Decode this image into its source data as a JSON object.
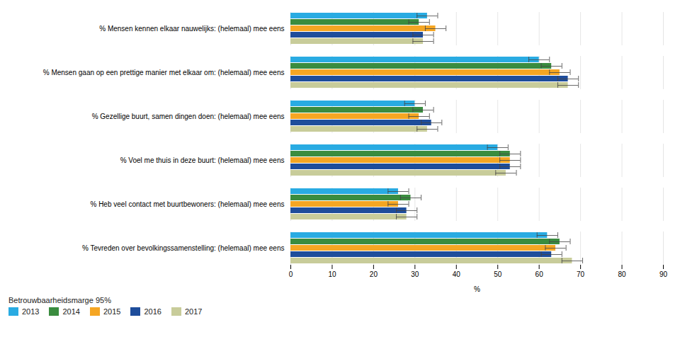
{
  "chart_data": {
    "type": "bar",
    "orientation": "horizontal",
    "categories": [
      "% Mensen kennen elkaar nauwelijks: (helemaal) mee eens",
      "% Mensen gaan op een prettige manier met elkaar om: (helemaal) mee eens",
      "% Gezellige buurt, samen dingen doen: (helemaal) mee eens",
      "% Voel me thuis in deze buurt: (helemaal) mee eens",
      "% Heb veel contact met buurtbewoners: (helemaal) mee eens",
      "% Tevreden over bevolkingssamenstelling: (helemaal) mee eens"
    ],
    "series": [
      {
        "name": "2013",
        "color": "#29ABE2",
        "values": [
          33,
          60,
          30,
          50,
          26,
          62
        ],
        "errors": [
          2.5,
          2.5,
          2.5,
          2.5,
          2.5,
          2.5
        ]
      },
      {
        "name": "2014",
        "color": "#3A8C3F",
        "values": [
          31,
          63,
          32,
          53,
          29,
          65
        ],
        "errors": [
          2.5,
          2.5,
          2.5,
          2.5,
          2.5,
          2.5
        ]
      },
      {
        "name": "2015",
        "color": "#F5A623",
        "values": [
          35,
          65,
          31,
          53,
          26,
          64
        ],
        "errors": [
          2.5,
          2.5,
          2.5,
          2.5,
          2.5,
          2.5
        ]
      },
      {
        "name": "2016",
        "color": "#1E4D9B",
        "values": [
          32,
          67,
          34,
          53,
          28,
          63
        ],
        "errors": [
          2.5,
          2.5,
          2.5,
          2.5,
          2.5,
          2.5
        ]
      },
      {
        "name": "2017",
        "color": "#C8CC9A",
        "values": [
          32,
          67,
          33,
          52,
          28,
          68
        ],
        "errors": [
          2.5,
          2.5,
          2.5,
          2.5,
          2.5,
          2.5
        ]
      }
    ],
    "xlabel": "%",
    "xlim": [
      0,
      90
    ],
    "xticks": [
      0,
      10,
      20,
      30,
      40,
      50,
      60,
      70,
      80,
      90
    ],
    "grid": true,
    "legend": "bottom",
    "legend_title": "Betrouwbaarheidsmarge 95%"
  }
}
